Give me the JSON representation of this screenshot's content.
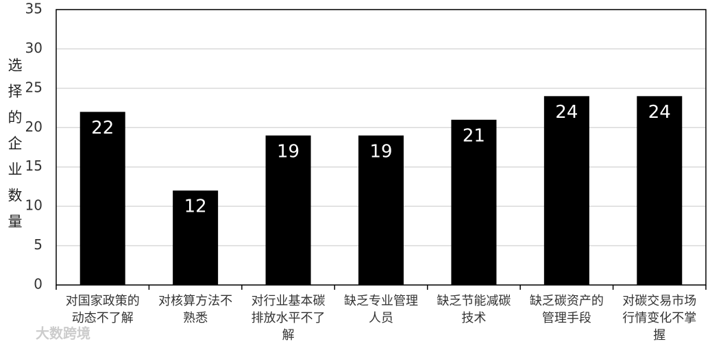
{
  "chart_data": {
    "type": "bar",
    "y_label": "选择的企业数量",
    "categories": [
      "对国家政策的动态不了解",
      "对核算方法不熟悉",
      "对行业基本碳排放水平不了解",
      "缺乏专业管理人员",
      "缺乏节能减碳技术",
      "缺乏碳资产的管理手段",
      "对碳交易市场行情变化不掌握"
    ],
    "values": [
      22,
      12,
      19,
      19,
      21,
      24,
      24
    ],
    "color": "#000000",
    "ylim": [
      0,
      35
    ],
    "yticks": [
      0,
      5,
      10,
      15,
      20,
      25,
      30,
      35
    ],
    "grid": true,
    "watermark": "大数跨境"
  }
}
